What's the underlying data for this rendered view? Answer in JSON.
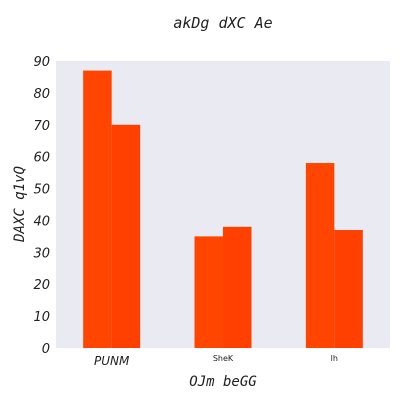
{
  "chart_data": {
    "type": "bar",
    "title": "akDg dXC Ae",
    "xlabel": "OJm beGG",
    "ylabel": "DAXC q1vQ",
    "categories": [
      "PUNM",
      "SheK",
      "lh"
    ],
    "series": [
      {
        "values": [
          87,
          35,
          58
        ],
        "color": "#ff4500"
      },
      {
        "values": [
          70,
          38,
          37
        ],
        "color": "#ff4000"
      }
    ],
    "ylim": [
      0,
      90
    ],
    "yticks": [
      0,
      10,
      20,
      30,
      40,
      50,
      60,
      70,
      80,
      90
    ],
    "grid": false,
    "background": "#eaeaf2"
  }
}
